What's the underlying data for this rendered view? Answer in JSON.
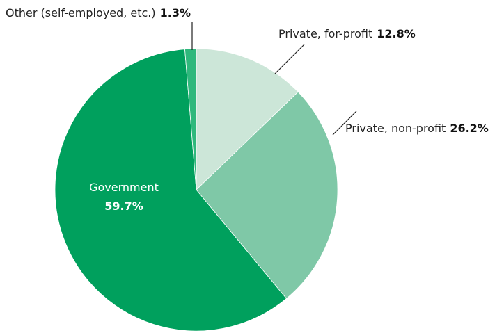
{
  "chart_data": {
    "type": "pie",
    "title": "",
    "slices": [
      {
        "label": "Private, for-profit",
        "value": 12.8,
        "value_label": "12.8%",
        "color": "#cce6d8"
      },
      {
        "label": "Private, non-profit",
        "value": 26.2,
        "value_label": "26.2%",
        "color": "#7fc8a7"
      },
      {
        "label": "Government",
        "value": 59.7,
        "value_label": "59.7%",
        "color": "#00a05d"
      },
      {
        "label": "Other (self-employed, etc.)",
        "value": 1.3,
        "value_label": "1.3%",
        "color": "#2fb87c"
      }
    ],
    "start": "12 o'clock",
    "direction": "clockwise",
    "legend": "none"
  }
}
